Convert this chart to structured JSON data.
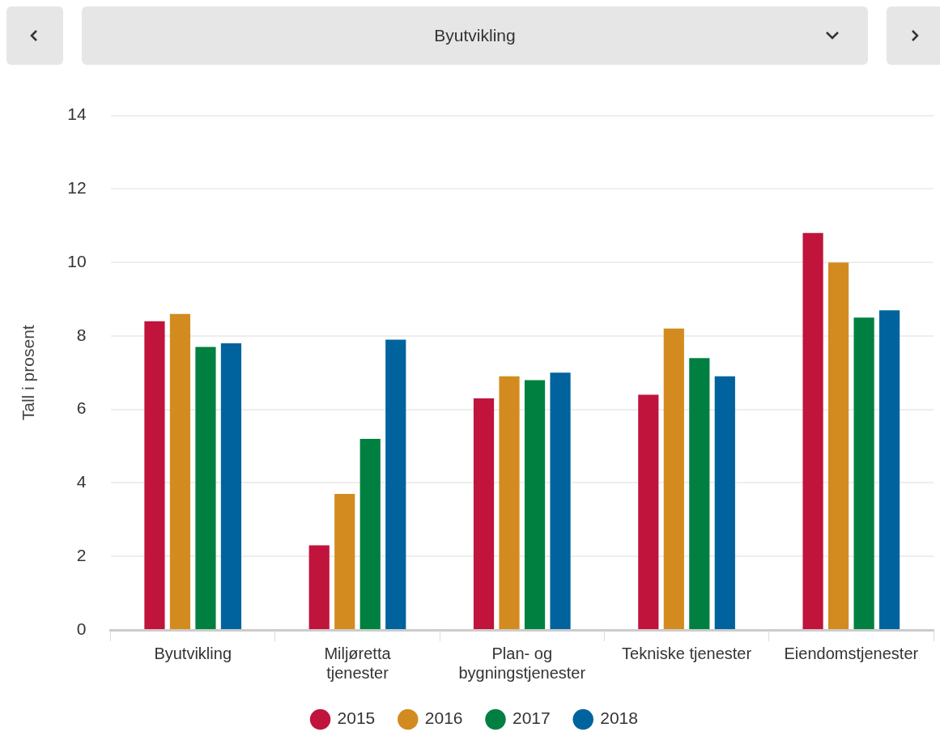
{
  "chart_data": {
    "type": "bar",
    "title": "Byutvikling",
    "ylabel": "Tall i prosent",
    "categories": [
      "Byutvikling",
      "Miljøretta tjenester",
      "Plan- og bygningstjenester",
      "Tekniske tjenester",
      "Eiendomstjenester"
    ],
    "series": [
      {
        "name": "2015",
        "color": "#c0143c",
        "values": [
          8.4,
          2.3,
          6.3,
          6.4,
          10.8
        ]
      },
      {
        "name": "2016",
        "color": "#d38b1f",
        "values": [
          8.6,
          3.7,
          6.9,
          8.2,
          10.0
        ]
      },
      {
        "name": "2017",
        "color": "#008040",
        "values": [
          7.7,
          5.2,
          6.8,
          7.4,
          8.5
        ]
      },
      {
        "name": "2018",
        "color": "#00639e",
        "values": [
          7.8,
          7.9,
          7.0,
          6.9,
          8.7
        ]
      }
    ],
    "ylim": [
      0,
      14
    ],
    "yticks": [
      0,
      2,
      4,
      6,
      8,
      10,
      12,
      14
    ],
    "grid": "y",
    "legend": "bottom",
    "marker": "circle"
  }
}
